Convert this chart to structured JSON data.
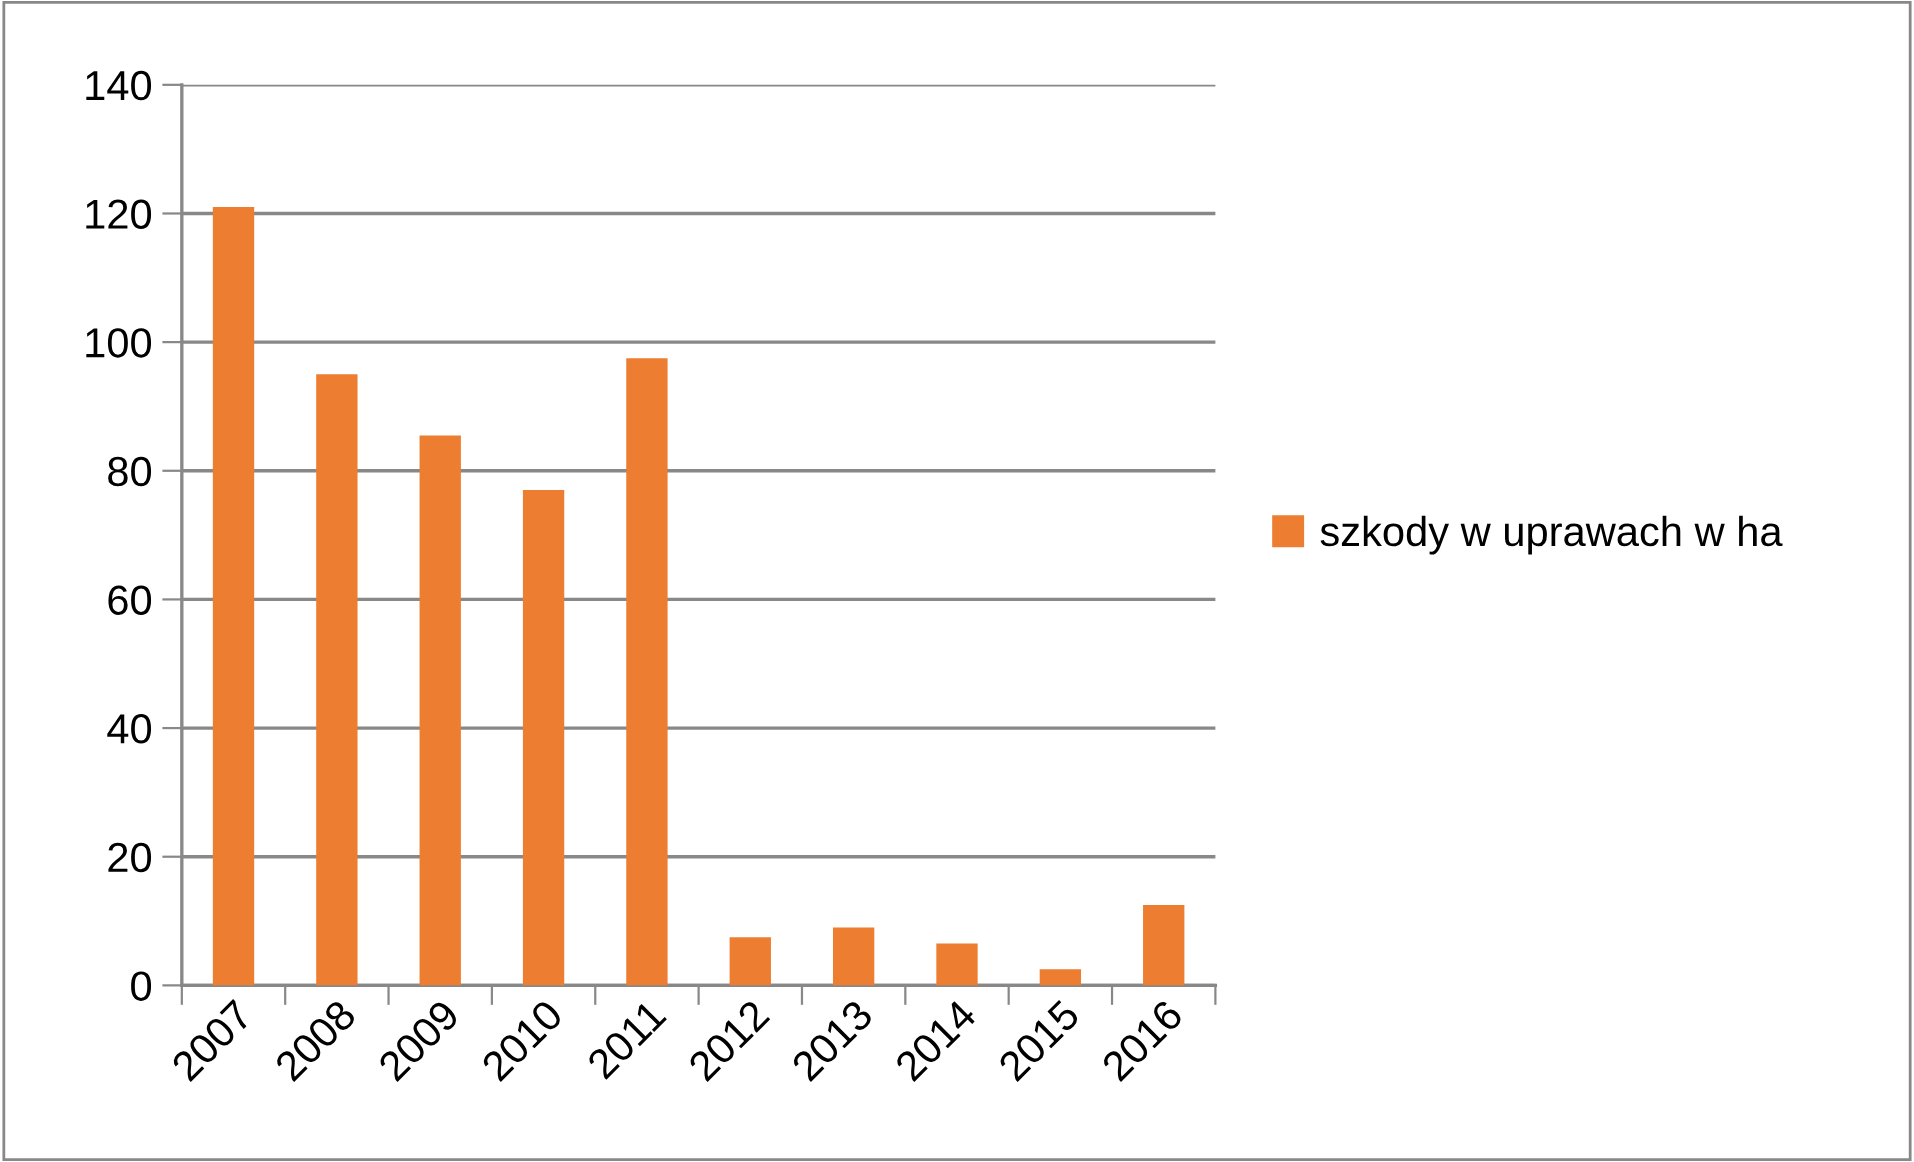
{
  "chart_data": {
    "type": "bar",
    "categories": [
      "2007",
      "2008",
      "2009",
      "2010",
      "2011",
      "2012",
      "2013",
      "2014",
      "2015",
      "2016"
    ],
    "series": [
      {
        "name": "szkody w uprawach w ha",
        "color": "#ed7d31",
        "values": [
          121,
          95,
          85.5,
          77,
          97.5,
          7.5,
          9,
          6.5,
          2.5,
          12.5
        ]
      }
    ],
    "ylim": [
      0,
      140
    ],
    "yticks": [
      0,
      20,
      40,
      60,
      80,
      100,
      120,
      140
    ],
    "grid": "y",
    "legend": "right"
  }
}
